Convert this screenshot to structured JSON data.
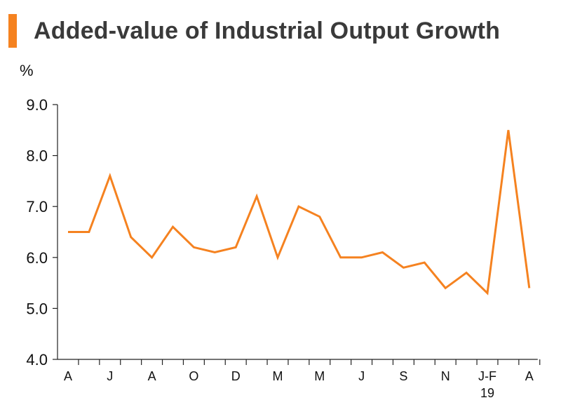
{
  "chart_data": {
    "type": "line",
    "title": "Added-value of Industrial Output Growth",
    "ylabel": "%",
    "xlabel": "",
    "ylim": [
      4.0,
      9.0
    ],
    "yticks": [
      "4.0",
      "5.0",
      "6.0",
      "7.0",
      "8.0",
      "9.0"
    ],
    "xtick_labels": [
      {
        "index": 0,
        "label": "A"
      },
      {
        "index": 2,
        "label": "J"
      },
      {
        "index": 4,
        "label": "A"
      },
      {
        "index": 6,
        "label": "O"
      },
      {
        "index": 8,
        "label": "D"
      },
      {
        "index": 10,
        "label": "M"
      },
      {
        "index": 12,
        "label": "M"
      },
      {
        "index": 14,
        "label": "J"
      },
      {
        "index": 16,
        "label": "S"
      },
      {
        "index": 18,
        "label": "N"
      },
      {
        "index": 20,
        "label": "J-F",
        "sublabel": "19"
      },
      {
        "index": 22,
        "label": "A"
      }
    ],
    "series": [
      {
        "values": [
          6.5,
          6.5,
          7.6,
          6.4,
          6.0,
          6.6,
          6.2,
          6.1,
          6.2,
          7.2,
          6.0,
          7.0,
          6.8,
          6.0,
          6.0,
          6.1,
          5.8,
          5.9,
          5.4,
          5.7,
          5.3,
          8.5,
          5.4
        ],
        "color": "#f58220"
      }
    ],
    "grid": false
  }
}
